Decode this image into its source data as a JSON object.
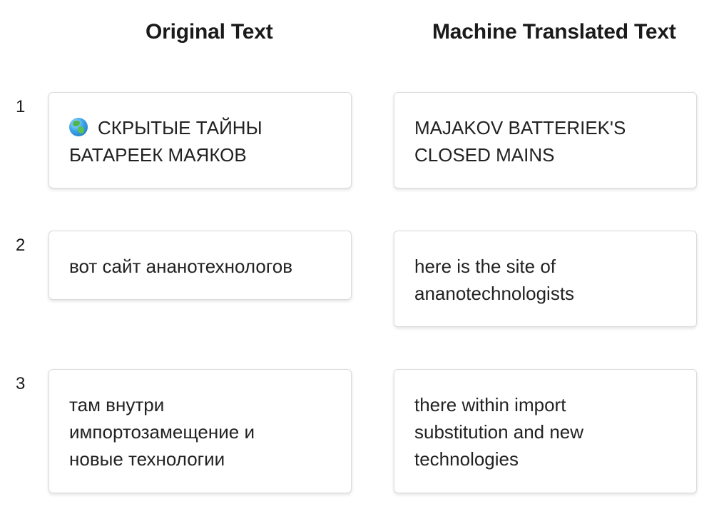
{
  "headers": {
    "original": "Original Text",
    "translated": "Machine Translated Text"
  },
  "rows": [
    {
      "number": "1",
      "original_icon": "globe-icon",
      "original": "СКРЫТЫЕ ТАЙНЫ\nБАТАРЕЕК МАЯКОВ",
      "translated": "MAJAKOV BATTERIEK'S\nCLOSED MAINS"
    },
    {
      "number": "2",
      "original": "вот сайт ананотехнологов",
      "translated": "here is the site of\nananotechnologists"
    },
    {
      "number": "3",
      "original": "там внутри\nимпортозамещение и\nновые технологии",
      "translated": "there within import\nsubstitution and new\ntechnologies"
    }
  ]
}
